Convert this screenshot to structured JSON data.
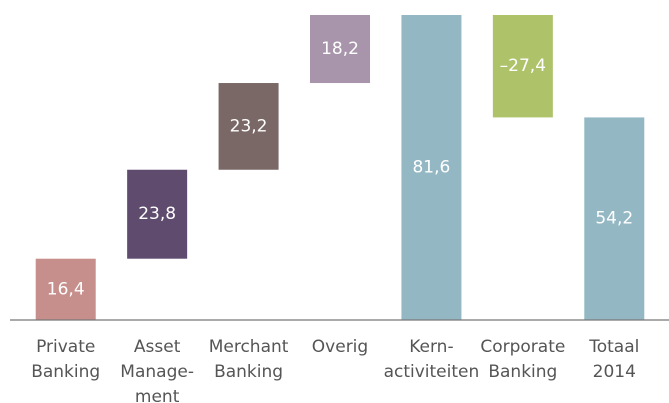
{
  "chart_data": {
    "type": "waterfall",
    "categories": [
      [
        "Private",
        "Banking"
      ],
      [
        "Asset",
        "Manage-",
        "ment"
      ],
      [
        "Merchant",
        "Banking"
      ],
      [
        "Overig"
      ],
      [
        "Kern-",
        "activiteiten"
      ],
      [
        "Corporate",
        "Banking"
      ],
      [
        "Totaal",
        "2014"
      ]
    ],
    "values": [
      16.4,
      23.8,
      23.2,
      18.2,
      81.6,
      -27.4,
      54.2
    ],
    "value_labels": [
      "16,4",
      "23,8",
      "23,2",
      "18,2",
      "81,6",
      "–27,4",
      "54,2"
    ],
    "is_total": [
      false,
      false,
      false,
      false,
      true,
      false,
      true
    ],
    "colors": [
      "#c68f8c",
      "#5f4b6e",
      "#7a6866",
      "#a895ab",
      "#94b7c4",
      "#aec26a",
      "#94b7c4"
    ]
  }
}
